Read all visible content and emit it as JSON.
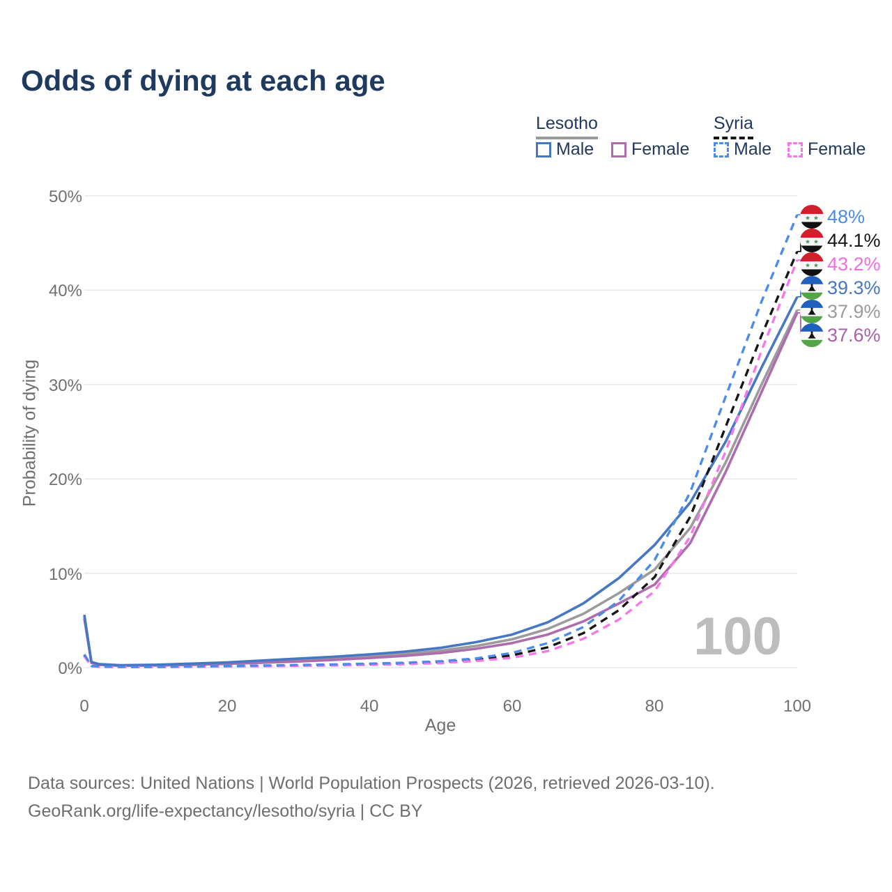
{
  "title": "Odds of dying at each age",
  "legend": {
    "groups": [
      {
        "label": "Lesotho",
        "line_style": "solid",
        "underline_color": "#9a9a9a",
        "items": [
          {
            "label": "Male",
            "color": "#4677c3",
            "style": "solid"
          },
          {
            "label": "Female",
            "color": "#ad6cae",
            "style": "solid"
          }
        ]
      },
      {
        "label": "Syria",
        "line_style": "dashed",
        "underline_color": "#161616",
        "items": [
          {
            "label": "Male",
            "color": "#4b8ceb",
            "style": "dashed"
          },
          {
            "label": "Female",
            "color": "#f678e8",
            "style": "dashed"
          }
        ]
      }
    ]
  },
  "watermark": "100",
  "footer": {
    "line1": "Data sources: United Nations | World Population Prospects (2026, retrieved 2026-03-10).",
    "line2": "GeoRank.org/life-expectancy/lesotho/syria | CC BY"
  },
  "chart_data": {
    "type": "line",
    "title": "Odds of dying at each age",
    "xlabel": "Age",
    "ylabel": "Probability of dying",
    "xlim": [
      0,
      100
    ],
    "ylim": [
      0,
      50
    ],
    "unit": "%",
    "grid": "horizontal",
    "legend_position": "top-right",
    "x_ticks": [
      0,
      20,
      40,
      60,
      80,
      100
    ],
    "x_tick_labels": [
      "0",
      "20",
      "40",
      "60",
      "80",
      "100"
    ],
    "y_ticks": [
      0,
      10,
      20,
      30,
      40,
      50
    ],
    "y_tick_labels": [
      "0%",
      "10%",
      "20%",
      "30%",
      "40%",
      "50%"
    ],
    "ages": [
      0,
      1,
      2,
      5,
      10,
      15,
      20,
      25,
      30,
      35,
      40,
      45,
      50,
      55,
      60,
      65,
      70,
      75,
      80,
      85,
      90,
      95,
      100
    ],
    "series": [
      {
        "name": "Lesotho Both sexes",
        "country": "Lesotho",
        "sex": "both",
        "style": "solid",
        "color": "#9b9b9b",
        "width": 3.6,
        "values": [
          5.4,
          0.55,
          0.34,
          0.22,
          0.26,
          0.35,
          0.47,
          0.63,
          0.8,
          0.98,
          1.2,
          1.45,
          1.8,
          2.3,
          3.0,
          4.1,
          5.7,
          7.9,
          10.4,
          14.8,
          21.8,
          30.0,
          37.9
        ]
      },
      {
        "name": "Lesotho Female",
        "country": "Lesotho",
        "sex": "female",
        "style": "solid",
        "color": "#ad6cae",
        "width": 3.6,
        "values": [
          5.2,
          0.5,
          0.3,
          0.2,
          0.22,
          0.29,
          0.4,
          0.52,
          0.65,
          0.82,
          1.02,
          1.25,
          1.55,
          2.0,
          2.6,
          3.5,
          4.9,
          6.8,
          8.8,
          13.2,
          20.8,
          29.2,
          37.6
        ]
      },
      {
        "name": "Lesotho Male",
        "country": "Lesotho",
        "sex": "male",
        "style": "solid",
        "color": "#4677c3",
        "width": 3.6,
        "values": [
          5.6,
          0.6,
          0.38,
          0.25,
          0.3,
          0.42,
          0.55,
          0.75,
          0.95,
          1.15,
          1.4,
          1.7,
          2.1,
          2.7,
          3.5,
          4.8,
          6.8,
          9.5,
          13.0,
          17.5,
          24.0,
          31.8,
          39.3
        ]
      },
      {
        "name": "Syria Both sexes",
        "country": "Syria",
        "sex": "both",
        "style": "dashed",
        "color": "#161616",
        "width": 3.4,
        "values": [
          1.3,
          0.16,
          0.1,
          0.07,
          0.07,
          0.1,
          0.15,
          0.18,
          0.23,
          0.28,
          0.35,
          0.44,
          0.58,
          0.84,
          1.3,
          2.15,
          3.65,
          6.1,
          9.6,
          16.0,
          25.6,
          35.2,
          44.1
        ]
      },
      {
        "name": "Syria Female",
        "country": "Syria",
        "sex": "female",
        "style": "dashed",
        "color": "#f678e8",
        "width": 3.4,
        "values": [
          1.2,
          0.14,
          0.09,
          0.06,
          0.06,
          0.09,
          0.12,
          0.15,
          0.19,
          0.23,
          0.29,
          0.37,
          0.48,
          0.7,
          1.05,
          1.75,
          3.05,
          5.1,
          8.1,
          13.9,
          23.0,
          33.6,
          43.2
        ]
      },
      {
        "name": "Syria Male",
        "country": "Syria",
        "sex": "male",
        "style": "dashed",
        "color": "#4b8ceb",
        "width": 3.4,
        "values": [
          1.4,
          0.18,
          0.12,
          0.08,
          0.08,
          0.12,
          0.18,
          0.22,
          0.28,
          0.34,
          0.42,
          0.52,
          0.68,
          0.98,
          1.55,
          2.6,
          4.3,
          7.1,
          11.4,
          18.6,
          28.8,
          38.8,
          48.0
        ]
      }
    ],
    "end_labels": [
      {
        "text": "48%",
        "value": 48.0,
        "color": "#4b8ceb",
        "series_index": 5,
        "flag": "syria-flag-icon"
      },
      {
        "text": "44.1%",
        "value": 44.1,
        "color": "#161616",
        "series_index": 3,
        "flag": "syria-flag-icon"
      },
      {
        "text": "43.2%",
        "value": 43.2,
        "color": "#f36ce3",
        "series_index": 4,
        "flag": "syria-flag-icon"
      },
      {
        "text": "39.3%",
        "value": 39.3,
        "color": "#4677c3",
        "series_index": 2,
        "flag": "lesotho-flag-icon"
      },
      {
        "text": "37.9%",
        "value": 37.9,
        "color": "#9b9b9b",
        "series_index": 0,
        "flag": "lesotho-flag-icon"
      },
      {
        "text": "37.6%",
        "value": 37.6,
        "color": "#a661a8",
        "series_index": 1,
        "flag": "lesotho-flag-icon"
      }
    ]
  }
}
